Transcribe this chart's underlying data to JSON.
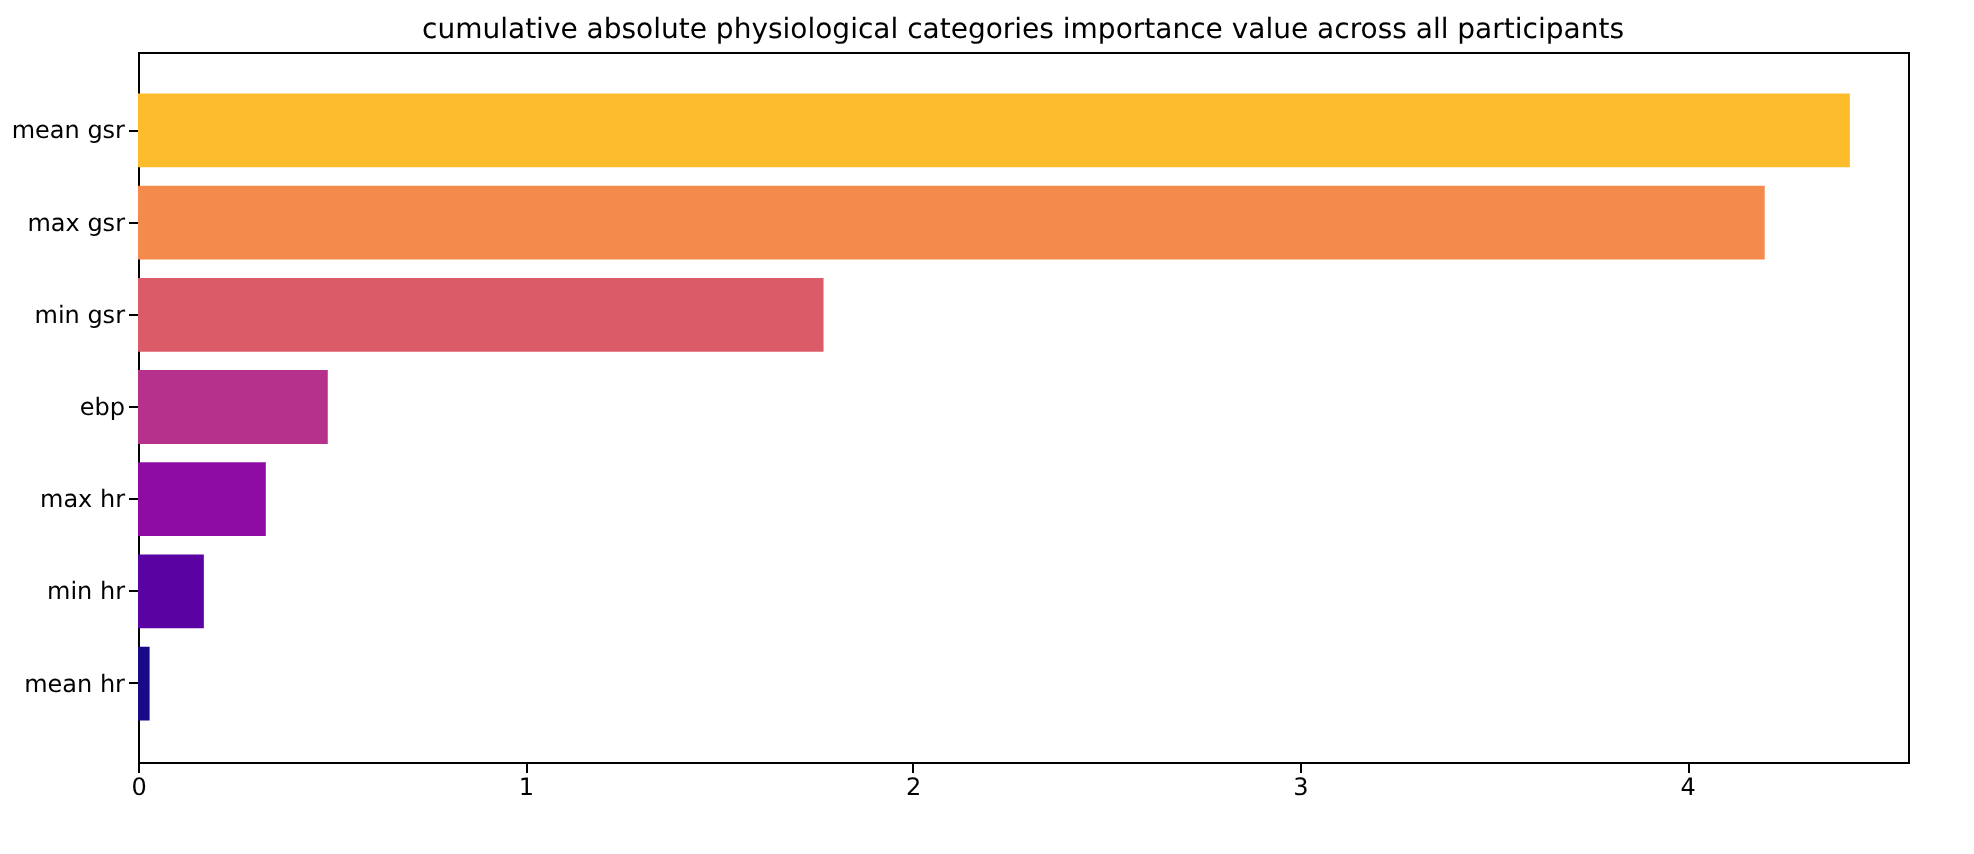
{
  "chart_data": {
    "type": "bar",
    "orientation": "horizontal",
    "title": "cumulative absolute physiological categories importance value across all participants",
    "categories": [
      "mean gsr",
      "max gsr",
      "min gsr",
      "ebp",
      "max hr",
      "min hr",
      "mean hr"
    ],
    "values": [
      4.42,
      4.2,
      1.77,
      0.49,
      0.33,
      0.17,
      0.03
    ],
    "colors": [
      "#fdbc2b",
      "#f48b4c",
      "#db5b69",
      "#b6318b",
      "#8e0ca4",
      "#5b02a3",
      "#1a0a8a"
    ],
    "xlim": [
      0,
      4.57
    ],
    "xticks": [
      0,
      1,
      2,
      3,
      4
    ],
    "grid": false
  }
}
